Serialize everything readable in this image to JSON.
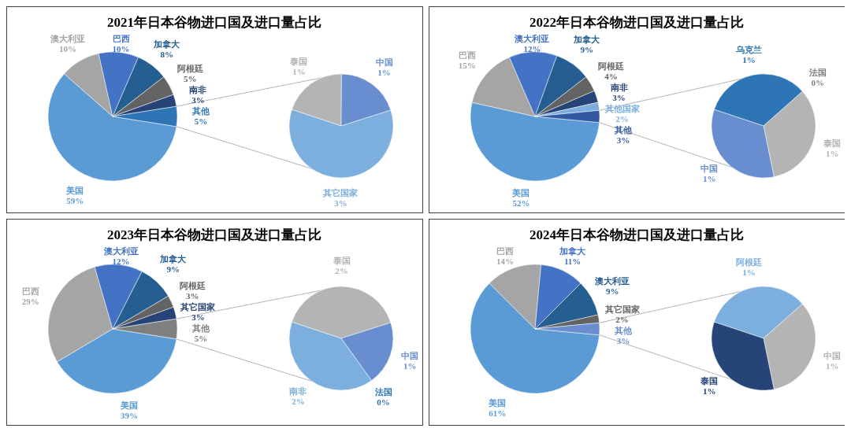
{
  "chart_data": [
    {
      "type": "pie",
      "title": "2021年日本谷物进口国及进口量占比",
      "categories": [
        "美国",
        "澳大利亚",
        "巴西",
        "加拿大",
        "阿根廷",
        "南非",
        "其他"
      ],
      "values": [
        59,
        10,
        10,
        8,
        5,
        3,
        5
      ],
      "colors": [
        "#5b9bd5",
        "#a5a5a5",
        "#4472c4",
        "#255e91",
        "#636363",
        "#264478",
        "#2e75b6"
      ],
      "value_labels": [
        "59%",
        "10%",
        "10%",
        "8%",
        "5%",
        "3%",
        "5%"
      ]
    },
    {
      "type": "pie",
      "categories": [
        "泰国",
        "中国",
        "其它国家"
      ],
      "values": [
        1,
        1,
        3
      ],
      "colors": [
        "#b4b4b4",
        "#698ed0",
        "#7cafdd"
      ],
      "value_labels": [
        "1%",
        "1%",
        "3%"
      ]
    },
    {
      "type": "pie",
      "title": "2022年日本谷物进口国及进口量占比",
      "categories": [
        "美国",
        "巴西",
        "澳大利亚",
        "加拿大",
        "阿根廷",
        "南非",
        "其他国家",
        "其他"
      ],
      "values": [
        52,
        15,
        12,
        9,
        4,
        3,
        2,
        3
      ],
      "colors": [
        "#5b9bd5",
        "#a5a5a5",
        "#4472c4",
        "#255e91",
        "#636363",
        "#264478",
        "#7cafdd",
        "#335aa1"
      ],
      "value_labels": [
        "52%",
        "15%",
        "12%",
        "9%",
        "4%",
        "3%",
        "2%",
        "3%"
      ]
    },
    {
      "type": "pie",
      "categories": [
        "乌克兰",
        "法国",
        "泰国",
        "中国"
      ],
      "values": [
        1,
        0,
        1,
        1
      ],
      "colors": [
        "#2e75b6",
        "#7f7f7f",
        "#b4b4b4",
        "#698ed0"
      ],
      "value_labels": [
        "1%",
        "0%",
        "1%",
        "1%"
      ]
    },
    {
      "type": "pie",
      "title": "2023年日本谷物进口国及进口量占比",
      "categories": [
        "美国",
        "巴西",
        "澳大利亚",
        "加拿大",
        "阿根廷",
        "其它国家",
        "其他"
      ],
      "values": [
        39,
        29,
        12,
        9,
        3,
        3,
        5
      ],
      "colors": [
        "#5b9bd5",
        "#a5a5a5",
        "#4472c4",
        "#255e91",
        "#636363",
        "#264478",
        "#7f7f7f"
      ],
      "value_labels": [
        "39%",
        "29%",
        "12%",
        "9%",
        "3%",
        "3%",
        "5%"
      ]
    },
    {
      "type": "pie",
      "categories": [
        "泰国",
        "中国",
        "法国",
        "南非"
      ],
      "values": [
        2,
        1,
        0,
        2
      ],
      "colors": [
        "#b4b4b4",
        "#698ed0",
        "#2e75b6",
        "#7cafdd"
      ],
      "value_labels": [
        "2%",
        "1%",
        "0%",
        "2%"
      ]
    },
    {
      "type": "pie",
      "title": "2024年日本谷物进口国及进口量占比",
      "categories": [
        "美国",
        "巴西",
        "加拿大",
        "澳大利亚",
        "其它国家",
        "其他"
      ],
      "values": [
        61,
        14,
        11,
        9,
        2,
        3
      ],
      "colors": [
        "#5b9bd5",
        "#a5a5a5",
        "#4472c4",
        "#255e91",
        "#636363",
        "#698ed0"
      ],
      "value_labels": [
        "61%",
        "14%",
        "11%",
        "9%",
        "2%",
        "3%"
      ]
    },
    {
      "type": "pie",
      "categories": [
        "阿根廷",
        "中国",
        "泰国"
      ],
      "values": [
        1,
        1,
        1
      ],
      "colors": [
        "#7cafdd",
        "#b4b4b4",
        "#264478"
      ],
      "value_labels": [
        "1%",
        "1%",
        "1%"
      ]
    }
  ]
}
